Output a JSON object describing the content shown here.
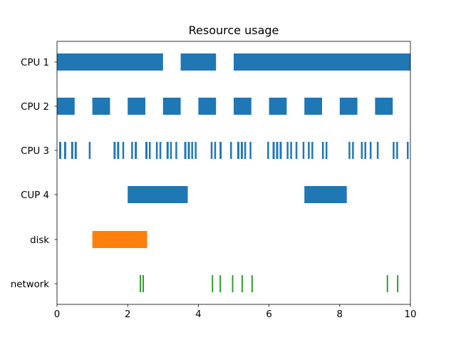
{
  "chart_data": {
    "type": "broken_barh",
    "title": "Resource usage",
    "xlim": [
      0,
      10
    ],
    "x_ticks": [
      0,
      2,
      4,
      6,
      8,
      10
    ],
    "x_tick_labels": [
      "0",
      "2",
      "4",
      "6",
      "8",
      "10"
    ],
    "grid": false,
    "legend": null,
    "colors": {
      "default": "#1f77b4",
      "orange": "#ff7f0e",
      "green": "#2ca02c"
    },
    "rows": [
      {
        "label": "CPU 1",
        "color": "#1f77b4",
        "intervals": [
          [
            0,
            3
          ],
          [
            3.5,
            4.5
          ],
          [
            5,
            10
          ]
        ]
      },
      {
        "label": "CPU 2",
        "color": "#1f77b4",
        "intervals": [
          [
            0,
            0.5
          ],
          [
            1,
            1.5
          ],
          [
            2,
            2.5
          ],
          [
            3,
            3.5
          ],
          [
            4,
            4.5
          ],
          [
            5,
            5.5
          ],
          [
            6,
            6.5
          ],
          [
            7,
            7.5
          ],
          [
            8,
            8.5
          ],
          [
            9,
            9.5
          ]
        ]
      },
      {
        "label": "CPU 3",
        "color": "#1f77b4",
        "intervals": [
          [
            0.06,
            0.12
          ],
          [
            0.2,
            0.26
          ],
          [
            0.4,
            0.46
          ],
          [
            0.5,
            0.56
          ],
          [
            0.9,
            0.95
          ],
          [
            1.6,
            1.66
          ],
          [
            1.7,
            1.76
          ],
          [
            1.85,
            1.9
          ],
          [
            2.1,
            2.15
          ],
          [
            2.2,
            2.26
          ],
          [
            2.5,
            2.56
          ],
          [
            2.6,
            2.65
          ],
          [
            2.8,
            2.85
          ],
          [
            2.9,
            2.95
          ],
          [
            3.1,
            3.16
          ],
          [
            3.2,
            3.25
          ],
          [
            3.35,
            3.4
          ],
          [
            3.6,
            3.66
          ],
          [
            3.7,
            3.76
          ],
          [
            3.8,
            3.85
          ],
          [
            3.9,
            3.95
          ],
          [
            4.35,
            4.4
          ],
          [
            4.45,
            4.5
          ],
          [
            4.6,
            4.66
          ],
          [
            4.9,
            4.95
          ],
          [
            5.1,
            5.16
          ],
          [
            5.2,
            5.26
          ],
          [
            5.3,
            5.35
          ],
          [
            5.45,
            5.5
          ],
          [
            5.95,
            6.0
          ],
          [
            6.1,
            6.16
          ],
          [
            6.2,
            6.26
          ],
          [
            6.3,
            6.36
          ],
          [
            6.5,
            6.55
          ],
          [
            6.6,
            6.65
          ],
          [
            6.75,
            6.8
          ],
          [
            6.95,
            7.0
          ],
          [
            7.1,
            7.15
          ],
          [
            7.2,
            7.25
          ],
          [
            7.5,
            7.55
          ],
          [
            7.6,
            7.65
          ],
          [
            8.25,
            8.3
          ],
          [
            8.35,
            8.4
          ],
          [
            8.6,
            8.65
          ],
          [
            8.7,
            8.75
          ],
          [
            8.85,
            8.9
          ],
          [
            9.05,
            9.1
          ],
          [
            9.5,
            9.55
          ],
          [
            9.6,
            9.65
          ],
          [
            9.9,
            9.95
          ]
        ]
      },
      {
        "label": "CUP 4",
        "color": "#1f77b4",
        "intervals": [
          [
            2,
            3.7
          ],
          [
            7,
            8.2
          ]
        ]
      },
      {
        "label": "disk",
        "color": "#ff7f0e",
        "intervals": [
          [
            1,
            2.55
          ]
        ]
      },
      {
        "label": "network",
        "color": "#2ca02c",
        "intervals": [
          [
            2.34,
            2.38
          ],
          [
            2.42,
            2.46
          ],
          [
            4.38,
            4.42
          ],
          [
            4.6,
            4.64
          ],
          [
            4.95,
            4.99
          ],
          [
            5.22,
            5.26
          ],
          [
            5.5,
            5.54
          ],
          [
            9.33,
            9.37
          ],
          [
            9.62,
            9.66
          ]
        ]
      }
    ]
  }
}
